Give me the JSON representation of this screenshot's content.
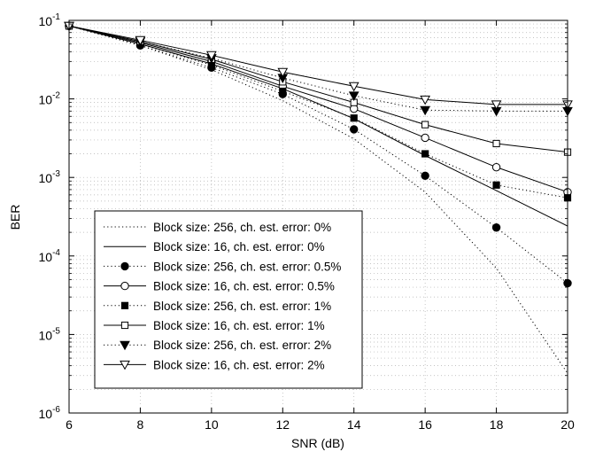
{
  "chart_data": {
    "type": "line",
    "xlabel": "SNR (dB)",
    "ylabel": "BER",
    "xlim": [
      6,
      20
    ],
    "ylim": [
      1e-06,
      0.1
    ],
    "yscale": "log",
    "grid": true,
    "legend_position": "bottom-left",
    "x_ticks": [
      "6",
      "8",
      "10",
      "12",
      "14",
      "16",
      "18",
      "20"
    ],
    "y_ticks": [
      {
        "base": "10",
        "exp": "-6"
      },
      {
        "base": "10",
        "exp": "-5"
      },
      {
        "base": "10",
        "exp": "-4"
      },
      {
        "base": "10",
        "exp": "-3"
      },
      {
        "base": "10",
        "exp": "-2"
      },
      {
        "base": "10",
        "exp": "-1"
      }
    ],
    "series": [
      {
        "name": "Block size: 256, ch. est. error: 0%",
        "line": "dotted",
        "marker": "none",
        "x": [
          6,
          8,
          10,
          12,
          14,
          16,
          18,
          20
        ],
        "y": [
          0.085,
          0.048,
          0.0235,
          0.0095,
          0.0031,
          0.00065,
          7e-05,
          3.2e-06
        ]
      },
      {
        "name": "Block size: 16, ch. est. error: 0%",
        "line": "solid",
        "marker": "none",
        "x": [
          6,
          8,
          10,
          12,
          14,
          16,
          18,
          20
        ],
        "y": [
          0.085,
          0.05,
          0.028,
          0.0135,
          0.0056,
          0.0019,
          0.00068,
          0.00024
        ]
      },
      {
        "name": "Block size: 256, ch. est. error: 0.5%",
        "line": "dotted",
        "marker": "filled-circle",
        "x": [
          6,
          8,
          10,
          12,
          14,
          16,
          18,
          20
        ],
        "y": [
          0.085,
          0.048,
          0.025,
          0.0115,
          0.0041,
          0.00105,
          0.00023,
          4.5e-05
        ]
      },
      {
        "name": "Block size: 16, ch. est. error: 0.5%",
        "line": "solid",
        "marker": "open-circle",
        "x": [
          6,
          8,
          10,
          12,
          14,
          16,
          18,
          20
        ],
        "y": [
          0.085,
          0.052,
          0.03,
          0.0145,
          0.0075,
          0.0032,
          0.00135,
          0.00065
        ]
      },
      {
        "name": "Block size: 256, ch. est. error: 1%",
        "line": "dotted",
        "marker": "filled-square",
        "x": [
          6,
          8,
          10,
          12,
          14,
          16,
          18,
          20
        ],
        "y": [
          0.085,
          0.05,
          0.027,
          0.0125,
          0.0057,
          0.002,
          0.0008,
          0.00055
        ]
      },
      {
        "name": "Block size: 16, ch. est. error: 1%",
        "line": "solid",
        "marker": "open-square",
        "x": [
          6,
          8,
          10,
          12,
          14,
          16,
          18,
          20
        ],
        "y": [
          0.085,
          0.054,
          0.032,
          0.0165,
          0.009,
          0.0047,
          0.0027,
          0.0021
        ]
      },
      {
        "name": "Block size: 256, ch. est. error: 2%",
        "line": "dotted",
        "marker": "filled-triangle-down",
        "x": [
          6,
          8,
          10,
          12,
          14,
          16,
          18,
          20
        ],
        "y": [
          0.085,
          0.054,
          0.033,
          0.0185,
          0.011,
          0.0072,
          0.007,
          0.007
        ]
      },
      {
        "name": "Block size: 16, ch. est. error: 2%",
        "line": "solid",
        "marker": "open-triangle-down",
        "x": [
          6,
          8,
          10,
          12,
          14,
          16,
          18,
          20
        ],
        "y": [
          0.085,
          0.056,
          0.036,
          0.022,
          0.0145,
          0.0098,
          0.0085,
          0.0085
        ]
      }
    ],
    "colors": {
      "line": "#000000",
      "grid": "#b0b0b0",
      "background": "#ffffff"
    }
  }
}
